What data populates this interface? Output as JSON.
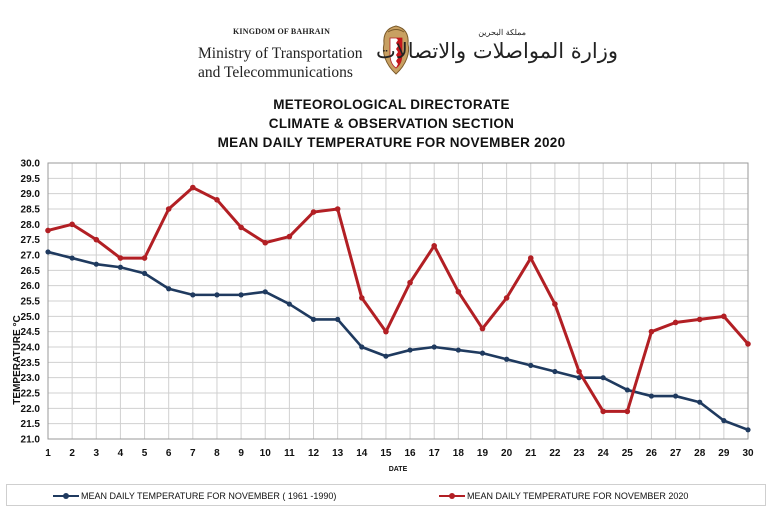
{
  "header": {
    "kingdom": "KINGDOM OF BAHRAIN",
    "ministry_line1": "Ministry of Transportation",
    "ministry_line2": "and Telecommunications",
    "arabic_small": "مملكة البحرين",
    "arabic_ministry": "وزارة المواصلات والاتصالات",
    "emblem_icon": "bahrain-coat-of-arms-icon"
  },
  "titles": {
    "line1": "METEOROLOGICAL DIRECTORATE",
    "line2": "CLIMATE & OBSERVATION SECTION",
    "line3": "MEAN DAILY TEMPERATURE FOR NOVEMBER 2020"
  },
  "colors": {
    "series_normal": "#1f3a5f",
    "series_2020": "#b21f24",
    "grid": "#d0d0d0"
  },
  "chart_data": {
    "type": "line",
    "title": "MEAN DAILY TEMPERATURE FOR NOVEMBER 2020",
    "xlabel": "DATE",
    "ylabel": "TEMPERATURE °C",
    "ylim": [
      21.0,
      30.0
    ],
    "ytick_step": 0.5,
    "grid": true,
    "legend_position": "bottom",
    "categories": [
      1,
      2,
      3,
      4,
      5,
      6,
      7,
      8,
      9,
      10,
      11,
      12,
      13,
      14,
      15,
      16,
      17,
      18,
      19,
      20,
      21,
      22,
      23,
      24,
      25,
      26,
      27,
      28,
      29,
      30
    ],
    "series": [
      {
        "name": "MEAN DAILY TEMPERATURE FOR NOVEMBER ( 1961 -1990)",
        "color": "#1f3a5f",
        "values": [
          27.1,
          26.9,
          26.7,
          26.6,
          26.4,
          25.9,
          25.7,
          25.7,
          25.7,
          25.8,
          25.4,
          24.9,
          24.9,
          24.0,
          23.7,
          23.9,
          24.0,
          23.9,
          23.8,
          23.6,
          23.4,
          23.2,
          23.0,
          23.0,
          22.6,
          22.4,
          22.4,
          22.2,
          21.6,
          21.3
        ]
      },
      {
        "name": "MEAN DAILY TEMPERATURE FOR NOVEMBER 2020",
        "color": "#b21f24",
        "values": [
          27.8,
          28.0,
          27.5,
          26.9,
          26.9,
          28.5,
          29.2,
          28.8,
          27.9,
          27.4,
          27.6,
          28.4,
          28.5,
          25.6,
          24.5,
          26.1,
          27.3,
          25.8,
          24.6,
          25.6,
          26.9,
          25.4,
          23.2,
          21.9,
          21.9,
          24.5,
          24.8,
          24.9,
          25.0,
          24.1
        ]
      }
    ]
  }
}
